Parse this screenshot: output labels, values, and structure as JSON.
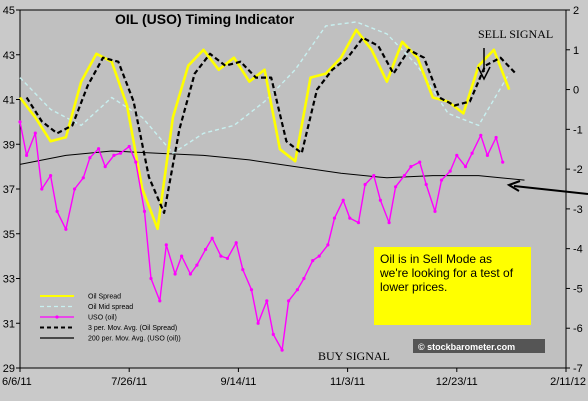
{
  "chart_data": {
    "type": "line",
    "title": "OIL (USO) Timing Indicator",
    "x_ticks": [
      "6/6/11",
      "7/26/11",
      "9/14/11",
      "11/3/11",
      "12/23/11",
      "2/11/12"
    ],
    "y_left_ticks": [
      "45",
      "43",
      "41",
      "39",
      "37",
      "35",
      "33",
      "31",
      "29"
    ],
    "y_right_ticks": [
      "2",
      "1",
      "0",
      "-1",
      "-2",
      "-3",
      "-4",
      "-5",
      "-6",
      "-7"
    ],
    "ylim_left": [
      29,
      45
    ],
    "ylim_right": [
      -7,
      2
    ],
    "xlim": [
      "2011-06-06",
      "2012-02-11"
    ],
    "grid": false,
    "legend_position": "bottom-left",
    "legend": [
      {
        "label": "Oil Spread",
        "color": "#ffff00",
        "style": "solid"
      },
      {
        "label": "Oil Mid spread",
        "color": "#c8f0f0",
        "style": "dashed"
      },
      {
        "label": "USO (oil)",
        "color": "#ff00ff",
        "style": "solid-markers"
      },
      {
        "label": "3 per. Mov. Avg. (Oil Spread)",
        "color": "#000000",
        "style": "dashed"
      },
      {
        "label": "200 per. Mov. Avg. (USO (oil))",
        "color": "#000000",
        "style": "solid"
      }
    ],
    "series": [
      {
        "name": "USO (oil)",
        "axis": "left",
        "color": "#ff00ff",
        "x": [
          "2011-06-06",
          "2011-06-09",
          "2011-06-13",
          "2011-06-16",
          "2011-06-20",
          "2011-06-23",
          "2011-06-27",
          "2011-07-01",
          "2011-07-05",
          "2011-07-08",
          "2011-07-12",
          "2011-07-15",
          "2011-07-19",
          "2011-07-22",
          "2011-07-26",
          "2011-07-29",
          "2011-08-02",
          "2011-08-05",
          "2011-08-09",
          "2011-08-12",
          "2011-08-16",
          "2011-08-19",
          "2011-08-23",
          "2011-08-26",
          "2011-08-30",
          "2011-09-02",
          "2011-09-06",
          "2011-09-09",
          "2011-09-13",
          "2011-09-16",
          "2011-09-20",
          "2011-09-23",
          "2011-09-27",
          "2011-09-30",
          "2011-10-04",
          "2011-10-07",
          "2011-10-11",
          "2011-10-14",
          "2011-10-18",
          "2011-10-21",
          "2011-10-25",
          "2011-10-28",
          "2011-11-01",
          "2011-11-04",
          "2011-11-08",
          "2011-11-11",
          "2011-11-15",
          "2011-11-18",
          "2011-11-22",
          "2011-11-25",
          "2011-11-29",
          "2011-12-02",
          "2011-12-06",
          "2011-12-09",
          "2011-12-13",
          "2011-12-16",
          "2011-12-20",
          "2011-12-23",
          "2011-12-27",
          "2011-12-30",
          "2012-01-03",
          "2012-01-06",
          "2012-01-10",
          "2012-01-13"
        ],
        "values": [
          40.0,
          38.5,
          39.5,
          37.0,
          37.6,
          36.0,
          35.2,
          37.0,
          37.5,
          38.4,
          38.8,
          38.0,
          38.5,
          38.6,
          38.9,
          38.2,
          36.0,
          33.0,
          32.0,
          34.5,
          33.2,
          34.0,
          33.2,
          33.6,
          34.3,
          34.8,
          34.0,
          33.9,
          34.6,
          33.4,
          32.5,
          31.0,
          32.0,
          30.5,
          29.8,
          32.0,
          32.5,
          33.0,
          33.8,
          34.0,
          34.5,
          35.7,
          36.5,
          35.7,
          35.5,
          37.2,
          37.6,
          36.5,
          35.5,
          37.1,
          37.6,
          38.0,
          38.2,
          37.2,
          36.0,
          37.4,
          37.8,
          38.5,
          38.0,
          38.6,
          39.4,
          38.5,
          39.3,
          38.2
        ]
      },
      {
        "name": "Oil Spread",
        "axis": "right",
        "color": "#ffff00",
        "x": [
          "2011-06-06",
          "2011-06-13",
          "2011-06-20",
          "2011-06-27",
          "2011-07-04",
          "2011-07-11",
          "2011-07-18",
          "2011-07-25",
          "2011-08-01",
          "2011-08-08",
          "2011-08-15",
          "2011-08-22",
          "2011-08-29",
          "2011-09-05",
          "2011-09-12",
          "2011-09-19",
          "2011-09-26",
          "2011-10-03",
          "2011-10-10",
          "2011-10-17",
          "2011-10-24",
          "2011-10-31",
          "2011-11-07",
          "2011-11-14",
          "2011-11-21",
          "2011-11-28",
          "2011-12-05",
          "2011-12-12",
          "2011-12-19",
          "2011-12-26",
          "2012-01-02",
          "2012-01-09",
          "2012-01-16"
        ],
        "values": [
          -0.2,
          -0.7,
          -1.3,
          -1.2,
          0.2,
          0.9,
          0.7,
          -0.4,
          -2.5,
          -3.5,
          -0.7,
          0.6,
          1.0,
          0.5,
          0.8,
          0.2,
          0.5,
          -1.5,
          -1.8,
          0.3,
          0.4,
          0.8,
          1.5,
          1.0,
          0.2,
          1.2,
          0.8,
          -0.2,
          -0.3,
          -0.6,
          0.6,
          1.0,
          0.0
        ]
      },
      {
        "name": "3 per. Mov. Avg. (Oil Spread)",
        "axis": "right",
        "color": "#000000",
        "x": [
          "2011-06-09",
          "2011-06-16",
          "2011-06-23",
          "2011-06-30",
          "2011-07-07",
          "2011-07-14",
          "2011-07-21",
          "2011-07-28",
          "2011-08-04",
          "2011-08-11",
          "2011-08-18",
          "2011-08-25",
          "2011-09-01",
          "2011-09-08",
          "2011-09-15",
          "2011-09-22",
          "2011-09-29",
          "2011-10-06",
          "2011-10-13",
          "2011-10-20",
          "2011-10-27",
          "2011-11-03",
          "2011-11-10",
          "2011-11-17",
          "2011-11-24",
          "2011-12-01",
          "2011-12-08",
          "2011-12-15",
          "2011-12-22",
          "2011-12-29",
          "2012-01-05",
          "2012-01-12",
          "2012-01-19"
        ],
        "values": [
          -0.2,
          -0.8,
          -1.1,
          -0.9,
          0.1,
          0.8,
          0.7,
          -0.3,
          -2.2,
          -3.1,
          -1.0,
          0.4,
          0.9,
          0.6,
          0.7,
          0.3,
          0.3,
          -1.3,
          -1.6,
          0.0,
          0.5,
          0.8,
          1.3,
          1.1,
          0.4,
          1.0,
          0.8,
          -0.2,
          -0.4,
          -0.3,
          0.6,
          0.8,
          0.4
        ]
      },
      {
        "name": "Oil Mid spread",
        "axis": "right",
        "color": "#c8f0f0",
        "x": [
          "2011-06-06",
          "2011-06-20",
          "2011-07-04",
          "2011-07-18",
          "2011-08-01",
          "2011-08-15",
          "2011-08-29",
          "2011-09-12",
          "2011-09-26",
          "2011-10-10",
          "2011-10-24",
          "2011-11-07",
          "2011-11-21",
          "2011-12-05",
          "2011-12-19",
          "2012-01-02",
          "2012-01-16"
        ],
        "values": [
          0.3,
          -0.5,
          -0.9,
          -0.2,
          -0.7,
          -1.6,
          -1.1,
          -0.9,
          -0.3,
          0.5,
          1.6,
          1.7,
          1.4,
          0.6,
          -0.6,
          -0.9,
          0.4
        ]
      },
      {
        "name": "200 per. Mov. Avg. (USO (oil))",
        "axis": "left",
        "color": "#000000",
        "x": [
          "2011-06-06",
          "2011-06-27",
          "2011-07-18",
          "2011-08-08",
          "2011-08-29",
          "2011-09-19",
          "2011-10-10",
          "2011-10-31",
          "2011-11-21",
          "2011-12-12",
          "2012-01-02",
          "2012-01-23"
        ],
        "values": [
          38.1,
          38.5,
          38.7,
          38.6,
          38.5,
          38.3,
          38.0,
          37.7,
          37.5,
          37.6,
          37.6,
          37.4
        ]
      }
    ],
    "annotations": {
      "sell_signal": "SELL  SIGNAL",
      "buy_signal": "BUY  SIGNAL",
      "note": [
        "Oil is in Sell Mode as",
        "we're looking for a test of",
        "lower prices."
      ],
      "watermark": "© stockbarometer.com"
    }
  }
}
